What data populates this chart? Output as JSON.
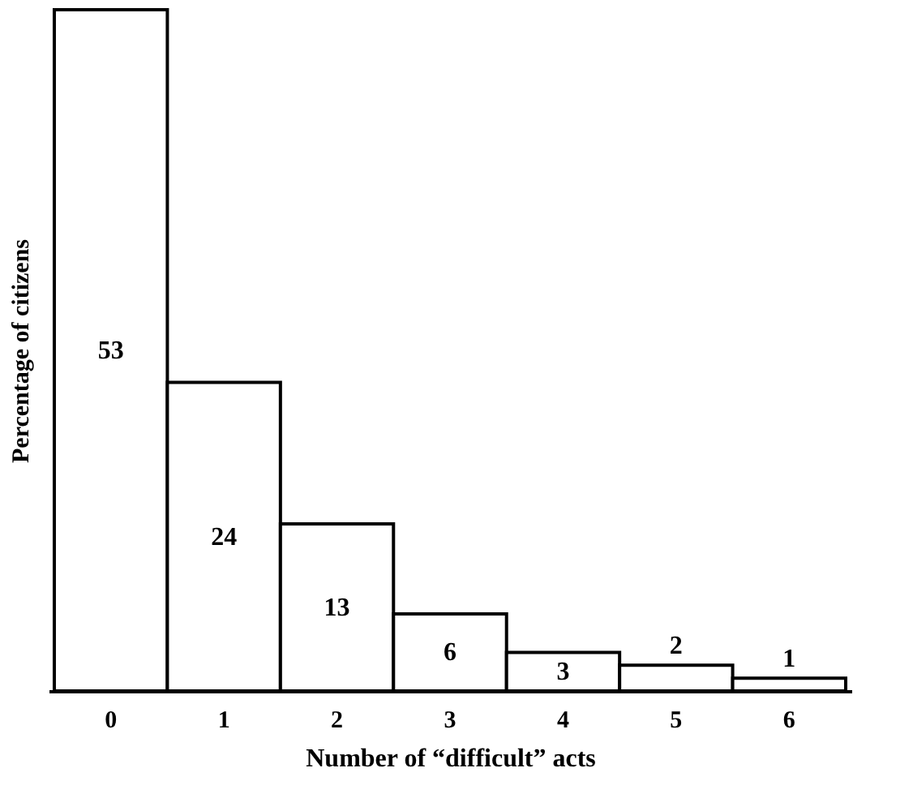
{
  "chart_data": {
    "type": "bar",
    "xlabel": "Number of “difficult” acts",
    "ylabel": "Percentage of citizens",
    "categories": [
      "0",
      "1",
      "2",
      "3",
      "4",
      "5",
      "6"
    ],
    "values": [
      53,
      24,
      13,
      6,
      3,
      2,
      1
    ],
    "color": "#ffffff",
    "ylim": [
      0,
      53
    ],
    "data_labels": true
  }
}
